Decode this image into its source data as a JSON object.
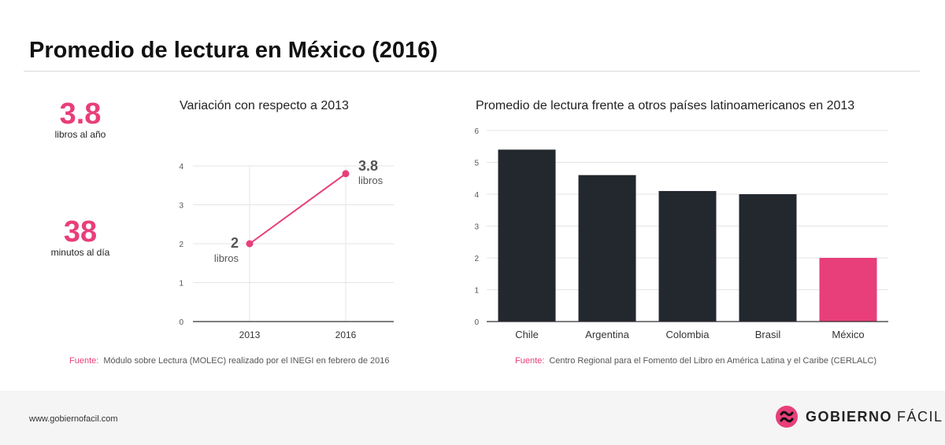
{
  "header": {
    "title": "Promedio de lectura en México (2016)"
  },
  "stats": [
    {
      "value": "3.8",
      "label": "libros al año"
    },
    {
      "value": "38",
      "label": "minutos al día"
    }
  ],
  "colors": {
    "accent": "#e83e7a",
    "bar_dark": "#23272e",
    "grid": "#e4e4e4"
  },
  "chart_data": [
    {
      "type": "line",
      "title": "Variación con respecto a 2013",
      "x": [
        "2013",
        "2016"
      ],
      "series": [
        {
          "values": [
            2,
            3.8
          ]
        }
      ],
      "annotations": [
        {
          "value": "2",
          "unit": "libros"
        },
        {
          "value": "3.8",
          "unit": "libros"
        }
      ],
      "ylim": [
        0,
        4
      ],
      "yticks": [
        "0",
        "1",
        "2",
        "3",
        "4"
      ],
      "grid": true,
      "source_label": "Fuente:",
      "source": "Módulo sobre Lectura (MOLEC) realizado por el INEGI en febrero de 2016"
    },
    {
      "type": "bar",
      "title": "Promedio de lectura frente a otros países latinoamericanos en 2013",
      "categories": [
        "Chile",
        "Argentina",
        "Colombia",
        "Brasil",
        "México"
      ],
      "values": [
        5.4,
        4.6,
        4.1,
        4.0,
        2.0
      ],
      "highlight": "México",
      "ylim": [
        0,
        6
      ],
      "yticks": [
        "0",
        "1",
        "2",
        "3",
        "4",
        "5",
        "6"
      ],
      "grid": true,
      "source_label": "Fuente:",
      "source": "Centro Regional para el Fomento del Libro en América Latina y el Caribe (CERLALC)"
    }
  ],
  "footer": {
    "url": "www.gobiernofacil.com",
    "brand_bold": "GOBIERNO",
    "brand_light": "FÁCIL"
  }
}
